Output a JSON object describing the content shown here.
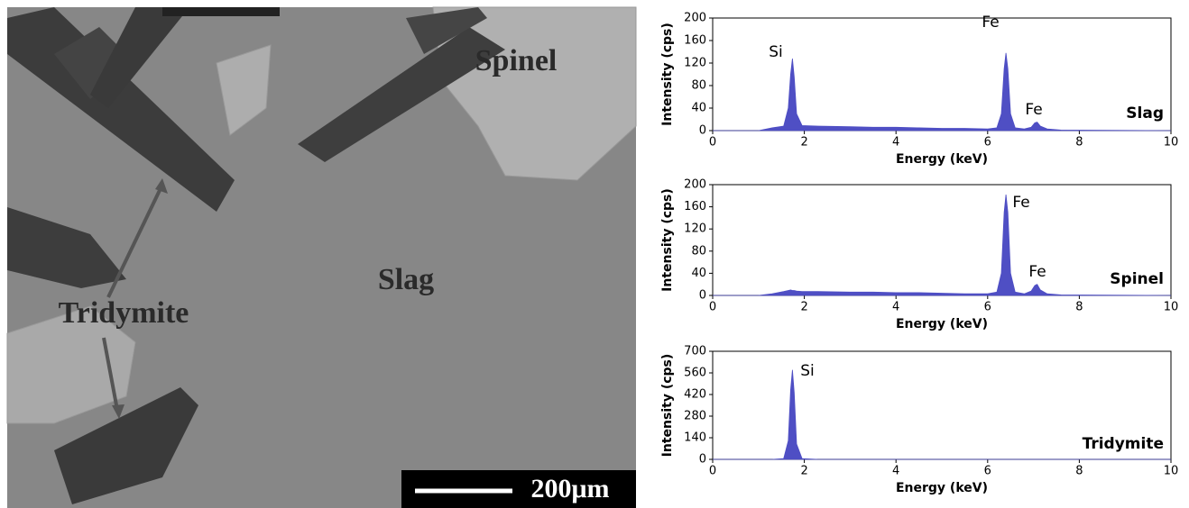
{
  "image": {
    "labels": [
      "Spinel",
      "Slag",
      "Tridymite"
    ],
    "scale_bar": "200μm"
  },
  "chart_data": [
    {
      "type": "area",
      "sample": "Slag",
      "xlabel": "Energy (keV)",
      "ylabel": "Intensity (cps)",
      "color": "#4f4fc4",
      "annotations": [
        "Si",
        "Fe",
        "Fe"
      ],
      "x": [
        0,
        1.0,
        1.3,
        1.55,
        1.65,
        1.7,
        1.74,
        1.78,
        1.83,
        1.95,
        2.3,
        3,
        3.5,
        4,
        4.5,
        5,
        5.5,
        6.0,
        6.2,
        6.3,
        6.36,
        6.4,
        6.44,
        6.5,
        6.6,
        6.8,
        6.95,
        7.03,
        7.08,
        7.15,
        7.3,
        7.6,
        10
      ],
      "values": [
        0,
        0,
        5,
        8,
        40,
        100,
        128,
        95,
        30,
        9,
        8,
        7,
        6,
        6,
        5,
        4,
        4,
        3,
        5,
        30,
        110,
        138,
        110,
        30,
        5,
        3,
        6,
        14,
        15,
        8,
        3,
        1,
        0
      ],
      "xlim": [
        0,
        10
      ],
      "xticks": [
        0,
        2,
        4,
        6,
        8,
        10
      ],
      "ylim": [
        0,
        200
      ],
      "yticks": [
        0,
        40,
        80,
        120,
        160,
        200
      ]
    },
    {
      "type": "area",
      "sample": "Spinel",
      "xlabel": "Energy (keV)",
      "ylabel": "Intensity (cps)",
      "color": "#4f4fc4",
      "annotations": [
        "Fe",
        "Fe"
      ],
      "x": [
        0,
        1.0,
        1.3,
        1.55,
        1.65,
        1.7,
        1.74,
        1.78,
        1.83,
        1.95,
        2.3,
        3,
        3.5,
        4,
        4.5,
        5,
        5.5,
        6.0,
        6.2,
        6.3,
        6.36,
        6.4,
        6.44,
        6.5,
        6.6,
        6.8,
        6.95,
        7.03,
        7.08,
        7.15,
        7.3,
        7.6,
        10
      ],
      "values": [
        0,
        0,
        3,
        7,
        9,
        10,
        9,
        9,
        8,
        7,
        7,
        6,
        6,
        5,
        5,
        4,
        3,
        3,
        6,
        40,
        150,
        182,
        150,
        40,
        6,
        3,
        8,
        18,
        20,
        10,
        3,
        1,
        0
      ],
      "xlim": [
        0,
        10
      ],
      "xticks": [
        0,
        2,
        4,
        6,
        8,
        10
      ],
      "ylim": [
        0,
        200
      ],
      "yticks": [
        0,
        40,
        80,
        120,
        160,
        200
      ]
    },
    {
      "type": "area",
      "sample": "Tridymite",
      "xlabel": "Energy (keV)",
      "ylabel": "Intensity (cps)",
      "color": "#4f4fc4",
      "annotations": [
        "Si"
      ],
      "x": [
        0,
        1.0,
        1.3,
        1.55,
        1.65,
        1.7,
        1.74,
        1.78,
        1.83,
        1.95,
        2.3,
        3,
        3.5,
        4,
        4.5,
        5,
        5.5,
        6.0,
        6.2,
        6.3,
        6.36,
        6.4,
        6.44,
        6.5,
        6.6,
        6.8,
        6.95,
        7.03,
        7.08,
        7.15,
        7.3,
        7.6,
        10
      ],
      "values": [
        0,
        0,
        0,
        5,
        120,
        450,
        580,
        430,
        100,
        5,
        0,
        0,
        0,
        0,
        0,
        0,
        0,
        0,
        0,
        0,
        0,
        0,
        0,
        0,
        0,
        0,
        0,
        0,
        0,
        0,
        0,
        0,
        0
      ],
      "xlim": [
        0,
        10
      ],
      "xticks": [
        0,
        2,
        4,
        6,
        8,
        10
      ],
      "ylim": [
        0,
        700
      ],
      "yticks": [
        0,
        140,
        280,
        420,
        560,
        700
      ]
    }
  ]
}
